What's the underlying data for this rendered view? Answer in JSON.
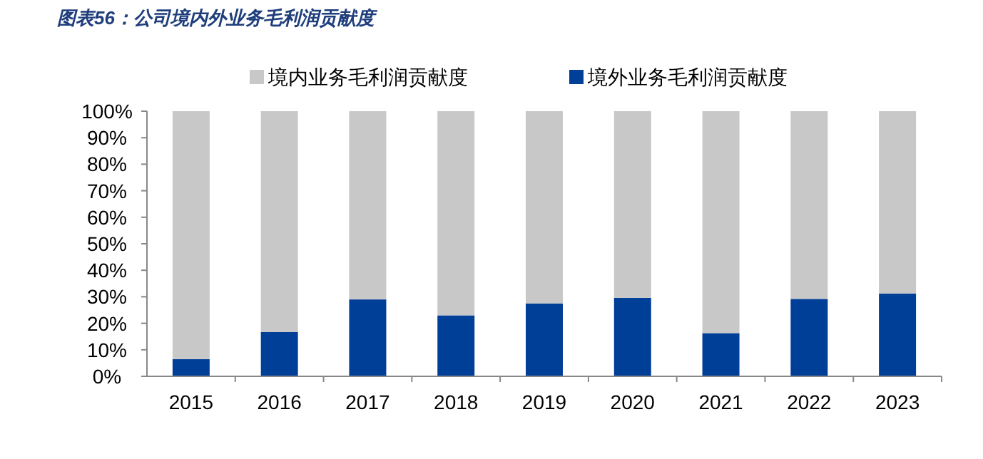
{
  "chart_data": {
    "type": "bar",
    "title": "图表56：公司境内外业务毛利润贡献度",
    "stacked": true,
    "categories": [
      "2015",
      "2016",
      "2017",
      "2018",
      "2019",
      "2020",
      "2021",
      "2022",
      "2023"
    ],
    "series": [
      {
        "name": "境外业务毛利润贡献度",
        "color": "#003f98",
        "values": [
          6.5,
          16.7,
          29,
          23,
          27.5,
          29.6,
          16.3,
          29.2,
          31.2
        ]
      },
      {
        "name": "境内业务毛利润贡献度",
        "color": "#c8c8c8",
        "values": [
          93.5,
          83.3,
          71,
          77,
          72.5,
          70.4,
          83.7,
          70.8,
          68.8
        ]
      }
    ],
    "ylim": [
      0,
      100
    ],
    "yticks": [
      {
        "value": 0,
        "label": "0%"
      },
      {
        "value": 10,
        "label": "10%"
      },
      {
        "value": 20,
        "label": "20%"
      },
      {
        "value": 30,
        "label": "30%"
      },
      {
        "value": 40,
        "label": "40%"
      },
      {
        "value": 50,
        "label": "50%"
      },
      {
        "value": 60,
        "label": "60%"
      },
      {
        "value": 70,
        "label": "70%"
      },
      {
        "value": 80,
        "label": "80%"
      },
      {
        "value": 90,
        "label": "90%"
      },
      {
        "value": 100,
        "label": "100%"
      }
    ],
    "legend": "top",
    "grid": false
  }
}
